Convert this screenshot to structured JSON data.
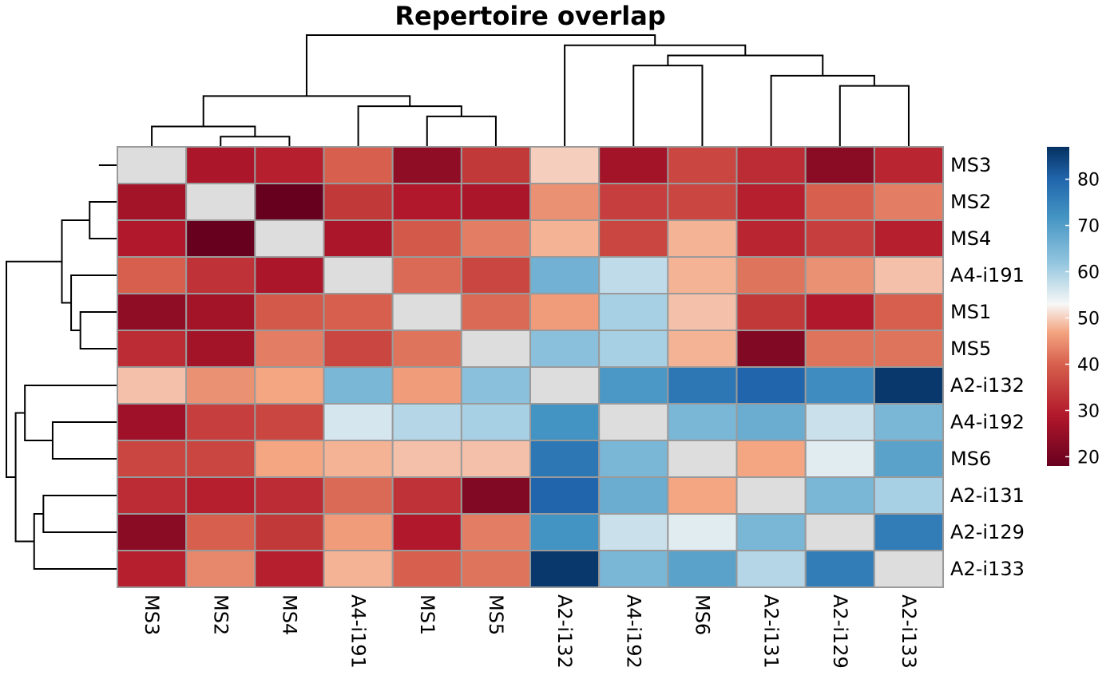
{
  "chart_data": {
    "type": "heatmap",
    "title": "Repertoire overlap",
    "rows": [
      "MS3",
      "MS2",
      "MS4",
      "A4-i191",
      "MS1",
      "MS5",
      "A2-i132",
      "A4-i192",
      "MS6",
      "A2-i131",
      "A2-i129",
      "A2-i133"
    ],
    "cols": [
      "MS3",
      "MS2",
      "MS4",
      "A4-i191",
      "MS1",
      "MS5",
      "A2-i132",
      "A4-i192",
      "MS6",
      "A2-i131",
      "A2-i129",
      "A2-i133"
    ],
    "values": [
      [
        null,
        28,
        30,
        40,
        24,
        34,
        50,
        27,
        36,
        32,
        23,
        31
      ],
      [
        27,
        null,
        18,
        34,
        29,
        28,
        45,
        35,
        36,
        30,
        40,
        43
      ],
      [
        29,
        18,
        null,
        28,
        39,
        43,
        48,
        36,
        48,
        31,
        35,
        30
      ],
      [
        40,
        33,
        28,
        null,
        41,
        36,
        66,
        58,
        48,
        42,
        45,
        49
      ],
      [
        24,
        27,
        39,
        40,
        null,
        41,
        46,
        60,
        49,
        34,
        29,
        40
      ],
      [
        32,
        27,
        43,
        36,
        42,
        null,
        63,
        60,
        48,
        22,
        42,
        42
      ],
      [
        49,
        45,
        47,
        65,
        46,
        63,
        null,
        71,
        77,
        80,
        73,
        86
      ],
      [
        26,
        35,
        36,
        56,
        59,
        60,
        72,
        null,
        65,
        67,
        57,
        65
      ],
      [
        36,
        36,
        47,
        48,
        49,
        49,
        77,
        65,
        null,
        47,
        55,
        69
      ],
      [
        32,
        30,
        32,
        41,
        33,
        22,
        80,
        67,
        47,
        null,
        65,
        60
      ],
      [
        23,
        40,
        34,
        46,
        29,
        43,
        72,
        57,
        55,
        65,
        null,
        76
      ],
      [
        30,
        44,
        30,
        48,
        40,
        42,
        86,
        65,
        69,
        59,
        76,
        null
      ]
    ],
    "color_scale": {
      "min": 18,
      "max": 87,
      "missing_color": "#dddddd",
      "stops": [
        {
          "value": 18,
          "color": "#67001f"
        },
        {
          "value": 29,
          "color": "#b2182b"
        },
        {
          "value": 40,
          "color": "#d6604d"
        },
        {
          "value": 47,
          "color": "#f4a582"
        },
        {
          "value": 53,
          "color": "#f7f7f7"
        },
        {
          "value": 62,
          "color": "#92c5de"
        },
        {
          "value": 72,
          "color": "#4393c3"
        },
        {
          "value": 80,
          "color": "#2166ac"
        },
        {
          "value": 87,
          "color": "#053061"
        }
      ]
    },
    "legend_ticks": [
      20,
      30,
      40,
      50,
      60,
      70,
      80
    ],
    "legend_position": "right",
    "row_dendrogram": [
      [
        2,
        1
      ],
      [
        -1,
        1
      ],
      [
        -3,
        -2
      ],
      [
        -5,
        -6
      ],
      [
        -4,
        4
      ],
      [
        3,
        5
      ],
      [
        -9,
        -8
      ],
      [
        -10,
        -11
      ],
      [
        -12,
        8
      ],
      [
        -7,
        7
      ],
      [
        9,
        10
      ],
      [
        6,
        11
      ]
    ],
    "col_dendrogram": [
      [
        -2,
        -3
      ],
      [
        -1,
        1
      ],
      [
        -5,
        -6
      ],
      [
        -4,
        3
      ],
      [
        2,
        4
      ],
      [
        -12,
        -11
      ],
      [
        -10,
        6
      ],
      [
        -9,
        -8
      ],
      [
        8,
        7
      ],
      [
        -7,
        9
      ],
      [
        5,
        10
      ]
    ],
    "col_dendrogram_heights": {
      "12": 0.5
    }
  }
}
